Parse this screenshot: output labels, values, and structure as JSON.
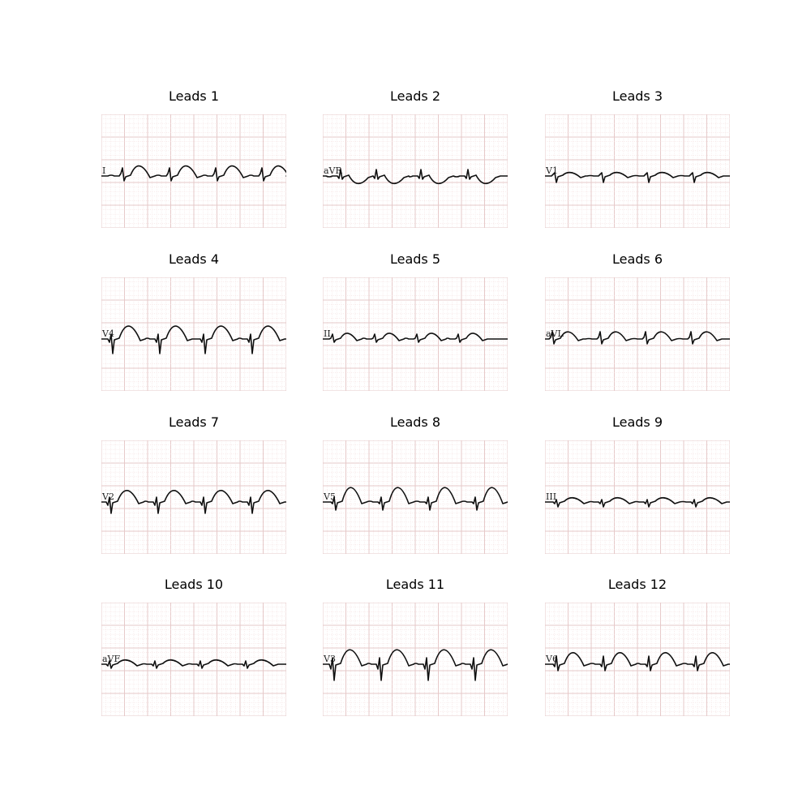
{
  "panels": [
    {
      "title": "Leads 1",
      "lead_label": "I"
    },
    {
      "title": "Leads 2",
      "lead_label": "aVR"
    },
    {
      "title": "Leads 3",
      "lead_label": "V1"
    },
    {
      "title": "Leads 4",
      "lead_label": "V4"
    },
    {
      "title": "Leads 5",
      "lead_label": "II"
    },
    {
      "title": "Leads 6",
      "lead_label": "aVL"
    },
    {
      "title": "Leads 7",
      "lead_label": "V2"
    },
    {
      "title": "Leads 8",
      "lead_label": "V5"
    },
    {
      "title": "Leads 9",
      "lead_label": "III"
    },
    {
      "title": "Leads 10",
      "lead_label": "aVF"
    },
    {
      "title": "Leads 11",
      "lead_label": "V3"
    },
    {
      "title": "Leads 12",
      "lead_label": "V6"
    }
  ],
  "colors": {
    "grid_minor": "#f3dede",
    "grid_major": "#e6c9c9",
    "trace": "#111111"
  }
}
